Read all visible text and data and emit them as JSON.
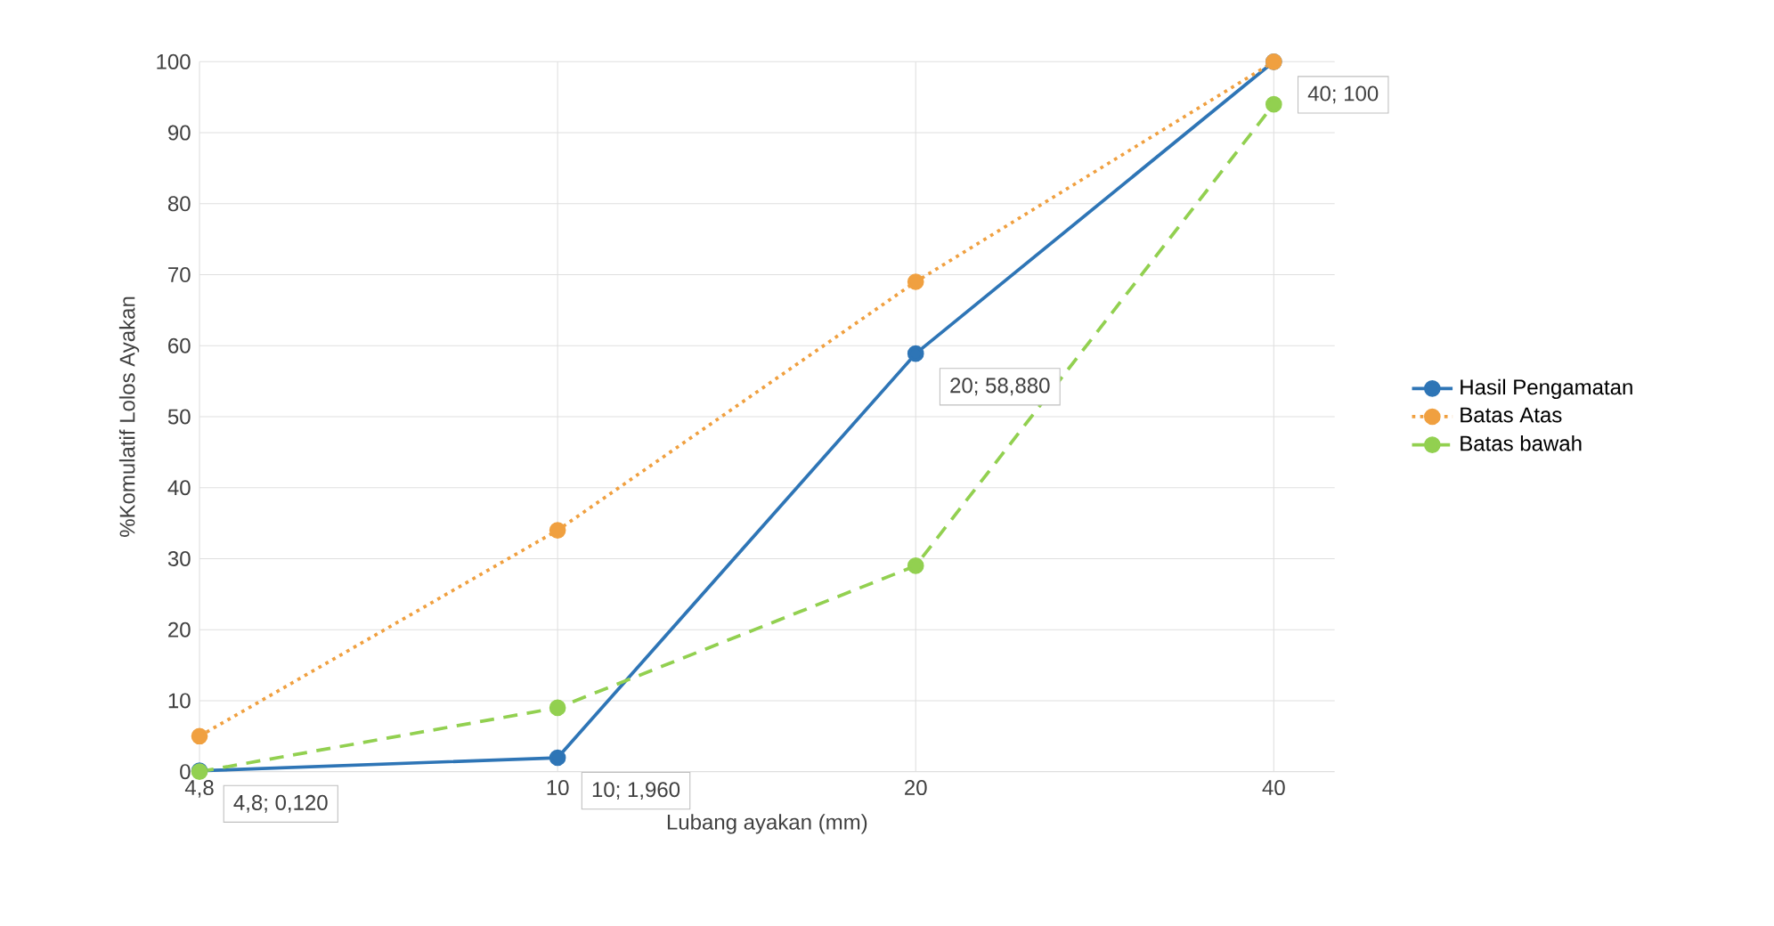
{
  "chart_data": {
    "type": "line",
    "xlabel": "Lubang ayakan (mm)",
    "ylabel": "%Komulatif Lolos Ayakan",
    "categories": [
      "4,8",
      "10",
      "20",
      "40"
    ],
    "series": [
      {
        "name": "Hasil Pengamatan",
        "color": "#2e75b6",
        "line_style": "solid",
        "values": [
          0.12,
          1.96,
          58.88,
          100
        ],
        "value_labels": [
          "4,8; 0,120",
          "10; 1,960",
          "20; 58,880",
          "40; 100"
        ]
      },
      {
        "name": "Batas Atas",
        "color": "#f0a040",
        "line_style": "dotted",
        "values": [
          5,
          34,
          69,
          100
        ]
      },
      {
        "name": "Batas bawah",
        "color": "#92d050",
        "line_style": "dashed",
        "values": [
          0,
          9,
          29,
          94
        ]
      }
    ],
    "ylim": [
      0,
      100
    ],
    "yticks": [
      0,
      10,
      20,
      30,
      40,
      50,
      60,
      70,
      80,
      90,
      100
    ],
    "grid": true,
    "legend": "right",
    "marker": "circle"
  }
}
